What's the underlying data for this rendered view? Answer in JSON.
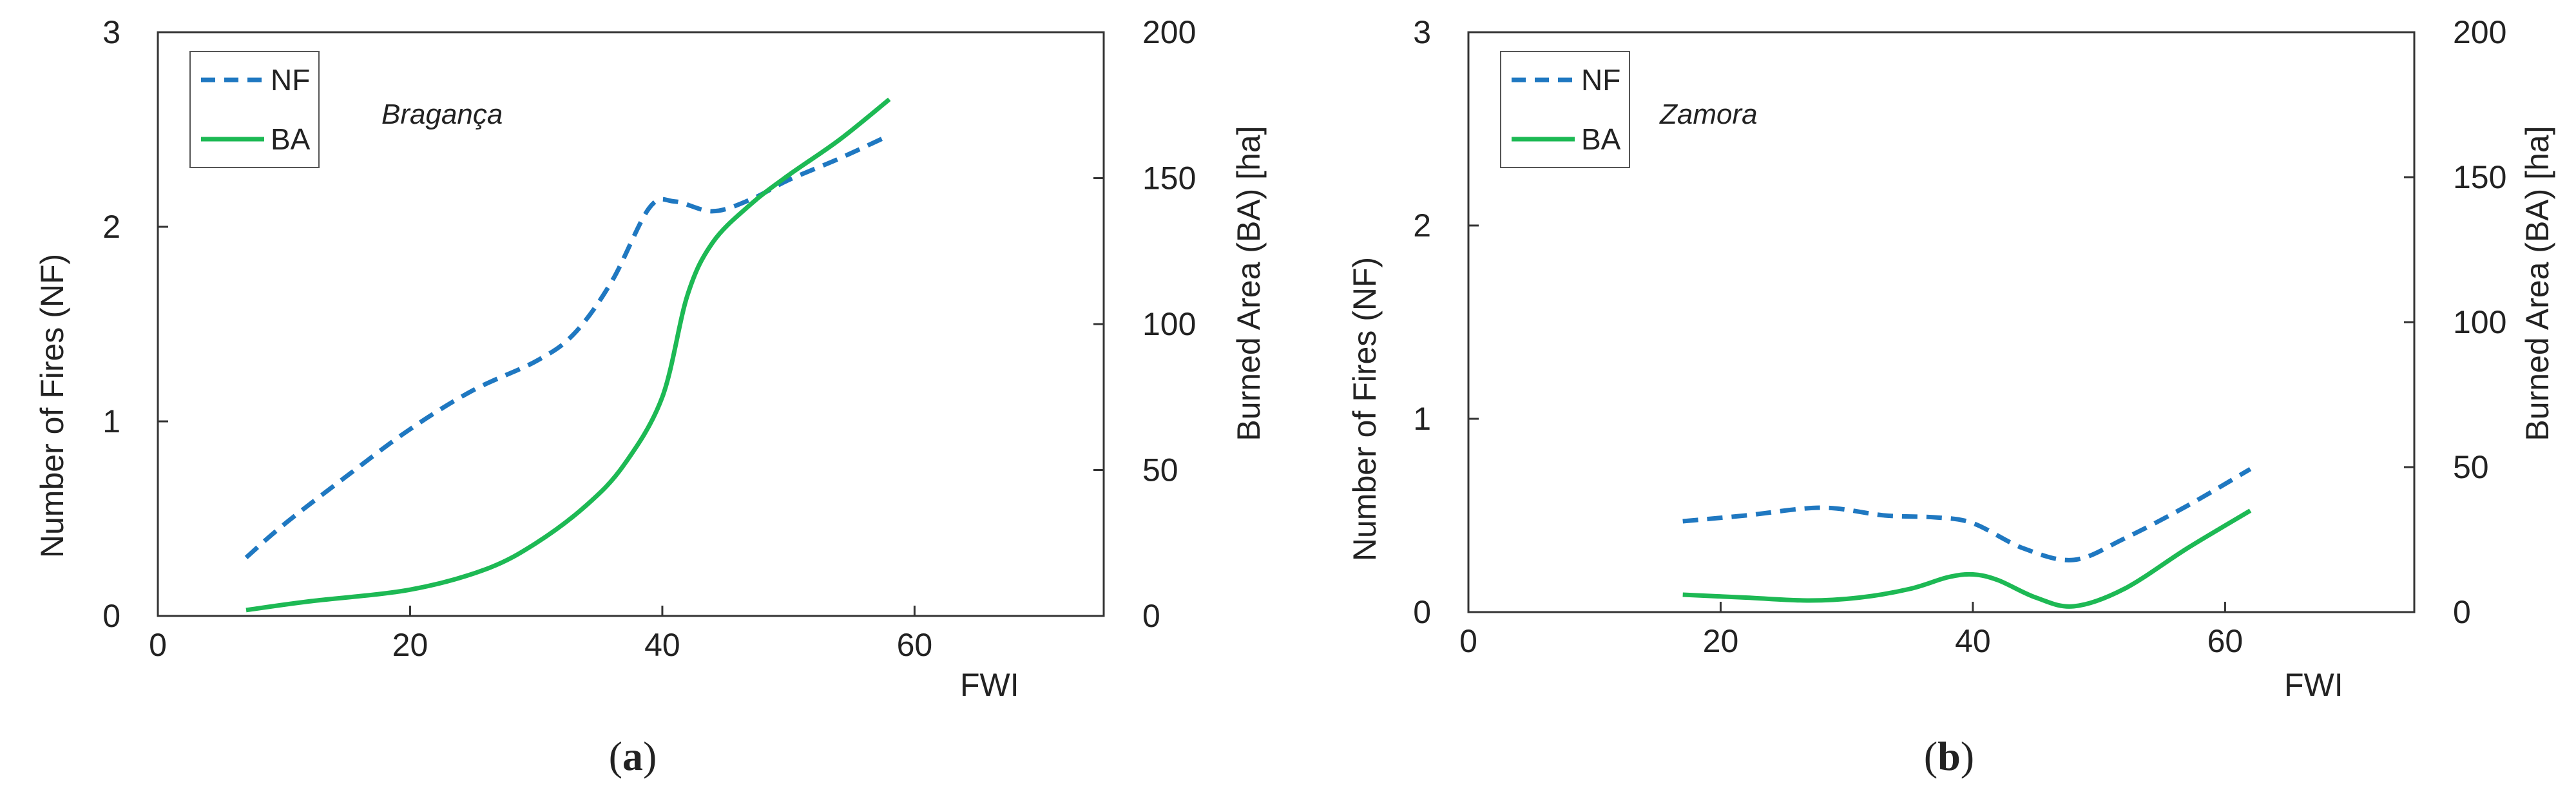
{
  "colors": {
    "nf": "#1f78c1",
    "ba": "#1db954",
    "frame": "#333333",
    "text": "#222222"
  },
  "chart_data": [
    {
      "type": "line",
      "panel_label": "a",
      "location": "Bragança",
      "xlabel": "FWI",
      "ylabel_left": "Number of Fires (NF)",
      "ylabel_right": "Burned Area (BA) [ha]",
      "xlim": [
        0,
        75
      ],
      "ylim_left": [
        0,
        3
      ],
      "ylim_right": [
        0,
        200
      ],
      "xticks": [
        0,
        20,
        40,
        60
      ],
      "yticks_left": [
        0,
        1,
        2,
        3
      ],
      "yticks_right": [
        0,
        50,
        100,
        150,
        200
      ],
      "legend_position": "top-left",
      "grid": false,
      "series": [
        {
          "name": "NF",
          "axis": "left",
          "style": "dashed",
          "x": [
            7,
            10,
            15,
            20,
            25,
            30,
            33,
            36,
            39,
            41,
            44,
            47,
            50,
            54,
            58
          ],
          "y": [
            0.3,
            0.47,
            0.72,
            0.96,
            1.16,
            1.31,
            1.45,
            1.72,
            2.1,
            2.13,
            2.08,
            2.14,
            2.24,
            2.35,
            2.47
          ]
        },
        {
          "name": "BA",
          "axis": "right",
          "style": "solid",
          "x": [
            7,
            12,
            20,
            26,
            30,
            34,
            37,
            40,
            42,
            44,
            47,
            50,
            54,
            58
          ],
          "y": [
            2,
            5,
            9,
            16,
            25,
            38,
            52,
            75,
            110,
            128,
            141,
            151,
            163,
            177
          ]
        }
      ]
    },
    {
      "type": "line",
      "panel_label": "b",
      "location": "Zamora",
      "xlabel": "FWI",
      "ylabel_left": "Number of Fires (NF)",
      "ylabel_right": "Burned Area (BA) [ha]",
      "xlim": [
        0,
        75
      ],
      "ylim_left": [
        0,
        3
      ],
      "ylim_right": [
        0,
        200
      ],
      "xticks": [
        0,
        20,
        40,
        60
      ],
      "yticks_left": [
        0,
        1,
        2,
        3
      ],
      "yticks_right": [
        0,
        50,
        100,
        150,
        200
      ],
      "legend_position": "top-left",
      "grid": false,
      "series": [
        {
          "name": "NF",
          "axis": "left",
          "style": "dashed",
          "x": [
            17,
            22,
            28,
            33,
            37,
            40,
            44,
            48,
            52,
            57,
            62
          ],
          "y": [
            0.47,
            0.5,
            0.54,
            0.5,
            0.49,
            0.46,
            0.33,
            0.27,
            0.38,
            0.55,
            0.74
          ]
        },
        {
          "name": "BA",
          "axis": "right",
          "style": "solid",
          "x": [
            17,
            22,
            27,
            31,
            35,
            38,
            40,
            42,
            45,
            48,
            52,
            57,
            62
          ],
          "y": [
            6,
            5,
            4,
            5,
            8,
            12,
            13,
            11,
            5,
            2,
            8,
            22,
            35
          ]
        }
      ]
    }
  ]
}
